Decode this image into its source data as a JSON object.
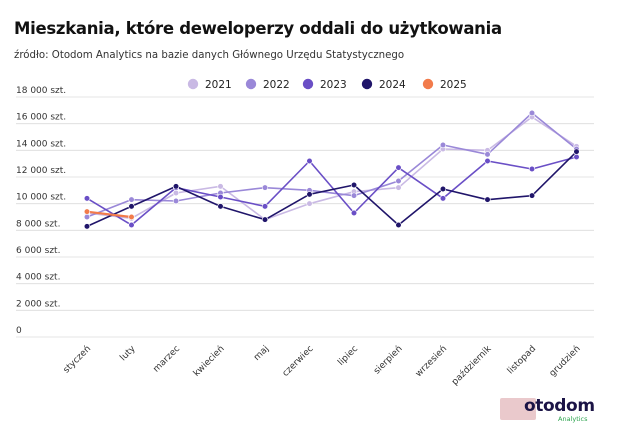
{
  "header": {
    "title": "Mieszkania, które deweloperzy oddali do użytkowania",
    "subtitle": "źródło: Otodom Analytics na bazie danych Głównego Urzędu Statystycznego"
  },
  "logo": {
    "brand": "otodom",
    "sub": "Analytics"
  },
  "chart_data": {
    "type": "line",
    "title": "Mieszkania, które deweloperzy oddali do użytkowania",
    "xlabel": "",
    "ylabel": "",
    "categories": [
      "styczeń",
      "luty",
      "marzec",
      "kwiecień",
      "maj",
      "czerwiec",
      "lipiec",
      "sierpień",
      "wrzesień",
      "październik",
      "listopad",
      "grudzień"
    ],
    "ylim": [
      0,
      18000
    ],
    "yticks": [
      0,
      2000,
      4000,
      6000,
      8000,
      10000,
      12000,
      14000,
      16000,
      18000
    ],
    "ytick_labels": [
      "0",
      "2 000 szt.",
      "4 000 szt.",
      "6 000 szt.",
      "8 000 szt.",
      "10 000 szt.",
      "12 000 szt.",
      "14 000 szt.",
      "16 000 szt.",
      "18 000 szt."
    ],
    "grid": true,
    "legend_position": "top-center",
    "series": [
      {
        "name": "2021",
        "color": "#c9b9e4",
        "values": [
          9300,
          8900,
          10800,
          11300,
          8800,
          10000,
          10900,
          11200,
          14100,
          14000,
          16500,
          14300
        ]
      },
      {
        "name": "2022",
        "color": "#9a88d8",
        "values": [
          9000,
          10300,
          10200,
          10800,
          11200,
          11000,
          10600,
          11700,
          14400,
          13700,
          16800,
          14100
        ]
      },
      {
        "name": "2023",
        "color": "#6a4fc6",
        "values": [
          10400,
          8400,
          11200,
          10500,
          9800,
          13200,
          9300,
          12700,
          10400,
          13200,
          12600,
          13500
        ]
      },
      {
        "name": "2024",
        "color": "#20156a",
        "values": [
          8300,
          9800,
          11300,
          9800,
          8800,
          10700,
          11400,
          8400,
          11100,
          10300,
          10600,
          13900
        ]
      },
      {
        "name": "2025",
        "color": "#f27b4b",
        "values": [
          9400,
          9000,
          null,
          null,
          null,
          null,
          null,
          null,
          null,
          null,
          null,
          null
        ]
      }
    ]
  }
}
